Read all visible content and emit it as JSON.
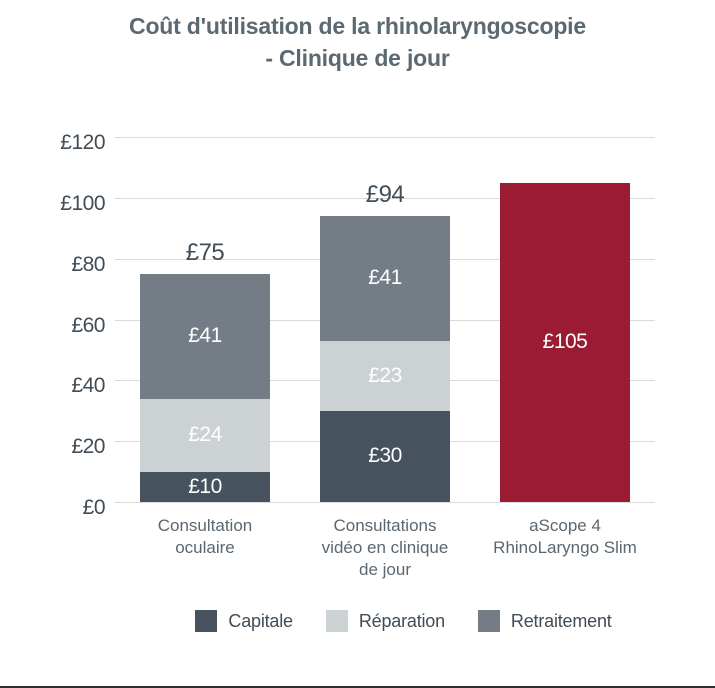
{
  "title": {
    "text": "Coût d'utilisation de la rhinolaryngoscopie\n- Clinique de jour"
  },
  "colors": {
    "capital": "#46525d",
    "repair": "#ccd1d4",
    "reprocessing": "#747d86",
    "ascope_red": "#9b1b33",
    "axis_text": "#414d57",
    "title_text": "#5b6973",
    "category_text": "#5b6770",
    "gridline": "#d8dadc"
  },
  "chart_data": {
    "type": "bar",
    "subtype": "stacked",
    "title": "Coût d'utilisation de la rhinolaryngoscopie - Clinique de jour",
    "xlabel": "",
    "ylabel": "",
    "ylim": [
      0,
      120
    ],
    "grid": true,
    "legend_position": "bottom",
    "currency": "£",
    "axis": {
      "ymax": 120,
      "ticks": [
        {
          "value": 0,
          "label": "£0"
        },
        {
          "value": 20,
          "label": "£20"
        },
        {
          "value": 40,
          "label": "£40"
        },
        {
          "value": 60,
          "label": "£60"
        },
        {
          "value": 80,
          "label": "£80"
        },
        {
          "value": 100,
          "label": "£100"
        },
        {
          "value": 120,
          "label": "£120"
        }
      ]
    },
    "bars": [
      {
        "category": "Consultation\noculaire",
        "total": 75,
        "total_label": "£75",
        "segments": [
          {
            "series": "Capitale",
            "value": 10,
            "label": "£10",
            "color": "#46525d"
          },
          {
            "series": "Réparation",
            "value": 24,
            "label": "£24",
            "color": "#ccd1d4"
          },
          {
            "series": "Retraitement",
            "value": 41,
            "label": "£41",
            "color": "#747d86"
          }
        ]
      },
      {
        "category": "Consultations\nvidéo en clinique\nde jour",
        "total": 94,
        "total_label": "£94",
        "segments": [
          {
            "series": "Capitale",
            "value": 30,
            "label": "£30",
            "color": "#46525d"
          },
          {
            "series": "Réparation",
            "value": 23,
            "label": "£23",
            "color": "#ccd1d4"
          },
          {
            "series": "Retraitement",
            "value": 41,
            "label": "£41",
            "color": "#747d86"
          }
        ]
      },
      {
        "category": "aScope 4\nRhinoLaryngo Slim",
        "total": 105,
        "total_label": null,
        "segments": [
          {
            "series": "aScope 4 RhinoLaryngo Slim",
            "value": 105,
            "label": "£105",
            "color": "#9b1b33"
          }
        ]
      }
    ]
  },
  "legend": {
    "items": [
      {
        "label": "Capitale",
        "color": "#46525d"
      },
      {
        "label": "Réparation",
        "color": "#ccd1d4"
      },
      {
        "label": "Retraitement",
        "color": "#747d86"
      }
    ]
  }
}
